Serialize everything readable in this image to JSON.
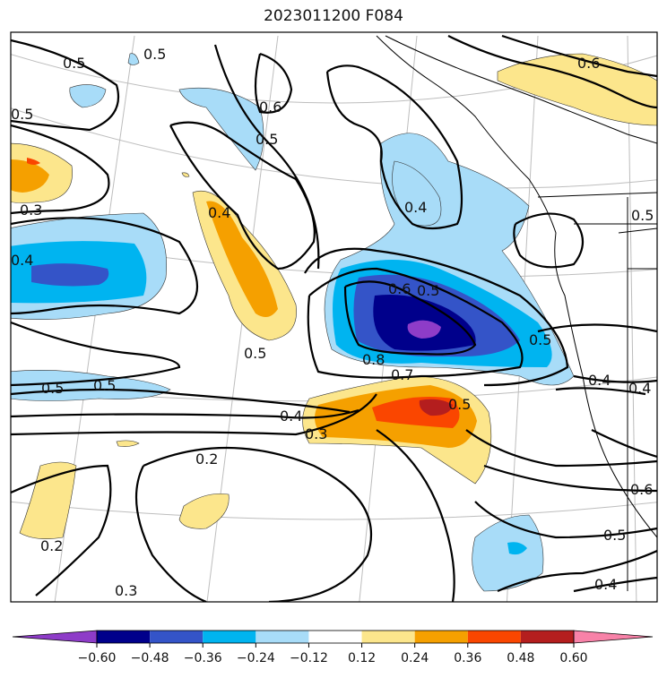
{
  "title": "2023011200 F084",
  "contour_labels": [
    "0.5",
    "0.5",
    "0.5",
    "0.6",
    "0.5",
    "0.6",
    "0.3",
    "0.4",
    "0.4",
    "0.4",
    "0.6",
    "0.5",
    "0.5",
    "0.8",
    "0.7",
    "0.5",
    "0.5",
    "0.5",
    "0.4",
    "0.3",
    "0.5",
    "0.2",
    "0.2",
    "0.3",
    "0.4",
    "0.4",
    "0.6",
    "0.5",
    "0.4",
    "0.5"
  ],
  "colorbar": {
    "ticks": [
      "−0.60",
      "−0.48",
      "−0.36",
      "−0.24",
      "−0.12",
      "0.12",
      "0.24",
      "0.36",
      "0.48",
      "0.60"
    ],
    "colors": [
      "#8e3cc8",
      "#00008b",
      "#3454c8",
      "#00b4f0",
      "#a8dcf8",
      "#ffffff",
      "#fce68c",
      "#f5a000",
      "#fa4600",
      "#b41e1e",
      "#f882a8"
    ]
  }
}
